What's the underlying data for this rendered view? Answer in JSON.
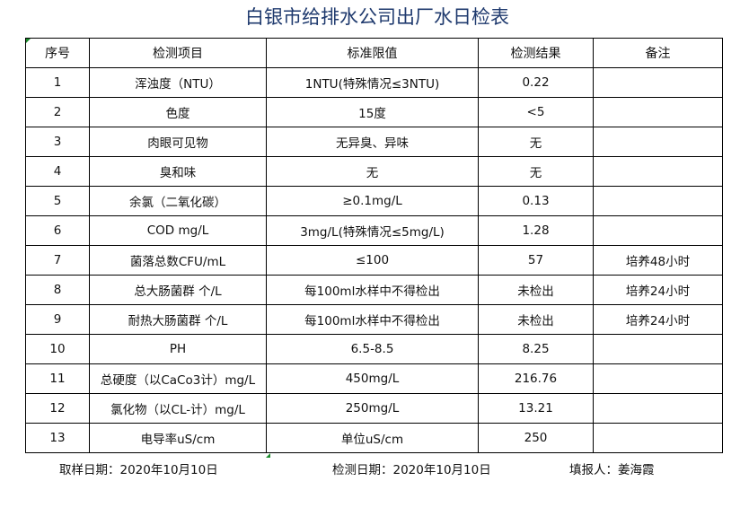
{
  "title": "白银市给排水公司出厂水日检表",
  "headers": [
    "序号",
    "检测项目",
    "标准限值",
    "检测结果",
    "备注"
  ],
  "rows": [
    [
      "1",
      "浑浊度（NTU）",
      "1NTU(特殊情况≤3NTU)",
      "0.22",
      ""
    ],
    [
      "2",
      "色度",
      "15度",
      "<5",
      ""
    ],
    [
      "3",
      "肉眼可见物",
      "无异臭、异味",
      "无",
      ""
    ],
    [
      "4",
      "臭和味",
      "无",
      "无",
      ""
    ],
    [
      "5",
      "余氯（二氧化碳）",
      "≥0.1mg/L",
      "0.13",
      ""
    ],
    [
      "6",
      "COD        mg/L",
      "3mg/L(特殊情况≤5mg/L)",
      "1.28",
      ""
    ],
    [
      "7",
      "菌落总数CFU/mL",
      "≤100",
      "57",
      "培养48小时"
    ],
    [
      "8",
      "总大肠菌群 个/L",
      "每100ml水样中不得检出",
      "未检出",
      "培养24小时"
    ],
    [
      "9",
      "耐热大肠菌群 个/L",
      "每100ml水样中不得检出",
      "未检出",
      "培养24小时"
    ],
    [
      "10",
      "PH",
      "6.5-8.5",
      "8.25",
      ""
    ],
    [
      "11",
      "总硬度（以CaCo3计）mg/L",
      "450mg/L",
      "216.76",
      ""
    ],
    [
      "12",
      "氯化物（以CL-计）mg/L",
      "250mg/L",
      "13.21",
      ""
    ],
    [
      "13",
      "电导率uS/cm",
      "单位uS/cm",
      "250",
      ""
    ]
  ],
  "footer": {
    "sampling_date": "取样日期：2020年10月10日",
    "test_date": "检测日期：2020年10月10日",
    "reporter": "填报人：姜海霞"
  },
  "colors": {
    "title": "#1f3a6e",
    "cell_marker": "#1a8a2a"
  }
}
